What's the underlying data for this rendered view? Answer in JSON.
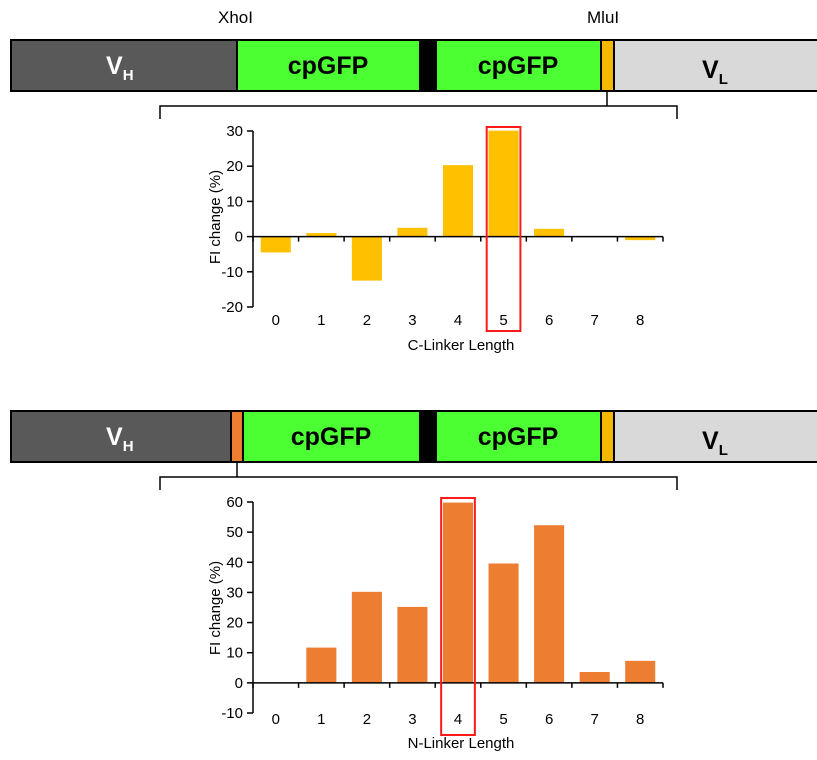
{
  "constructs": [
    {
      "sites": [
        "XhoI",
        "MluI"
      ],
      "segments": [
        {
          "type": "vh",
          "label": "V",
          "sub": "H",
          "color": "#595959"
        },
        {
          "type": "gfp",
          "label": "cpGFP",
          "color": "#4cff33"
        },
        {
          "type": "sep",
          "color": "#000000"
        },
        {
          "type": "gfp",
          "label": "cpGFP",
          "color": "#4cff33"
        },
        {
          "type": "linker",
          "color": "#f5b800"
        },
        {
          "type": "vl",
          "label": "V",
          "sub": "L",
          "color": "#d9d9d9"
        }
      ]
    },
    {
      "sites": [],
      "segments": [
        {
          "type": "vh",
          "label": "V",
          "sub": "H",
          "color": "#595959"
        },
        {
          "type": "linker",
          "color": "#ed7d31"
        },
        {
          "type": "gfp",
          "label": "cpGFP",
          "color": "#4cff33"
        },
        {
          "type": "sep",
          "color": "#000000"
        },
        {
          "type": "gfp",
          "label": "cpGFP",
          "color": "#4cff33"
        },
        {
          "type": "linker",
          "color": "#f5b800"
        },
        {
          "type": "vl",
          "label": "V",
          "sub": "L",
          "color": "#d9d9d9"
        }
      ]
    }
  ],
  "chart_data": [
    {
      "type": "bar",
      "categories": [
        "0",
        "1",
        "2",
        "3",
        "4",
        "5",
        "6",
        "7",
        "8"
      ],
      "values": [
        -4.5,
        1,
        -12.5,
        2.5,
        20.3,
        30.1,
        2.2,
        0,
        -1
      ],
      "ylabel": "FI change (%)",
      "xlabel": "C-Linker Length",
      "ylim": [
        -20,
        30
      ],
      "yticks": [
        -20,
        -10,
        0,
        10,
        20,
        30
      ],
      "highlight_category": "5",
      "bar_color": "#ffc000",
      "highlight_color": "#ff1a1a"
    },
    {
      "type": "bar",
      "categories": [
        "0",
        "1",
        "2",
        "3",
        "4",
        "5",
        "6",
        "7",
        "8"
      ],
      "values": [
        0,
        11.7,
        30.2,
        25.2,
        59.8,
        39.6,
        52.3,
        3.6,
        7.3
      ],
      "ylabel": "FI change (%)",
      "xlabel": "N-Linker Length",
      "ylim": [
        -10,
        60
      ],
      "yticks": [
        -10,
        0,
        10,
        20,
        30,
        40,
        50,
        60
      ],
      "highlight_category": "4",
      "bar_color": "#ed7d31",
      "highlight_color": "#ff1a1a"
    }
  ]
}
